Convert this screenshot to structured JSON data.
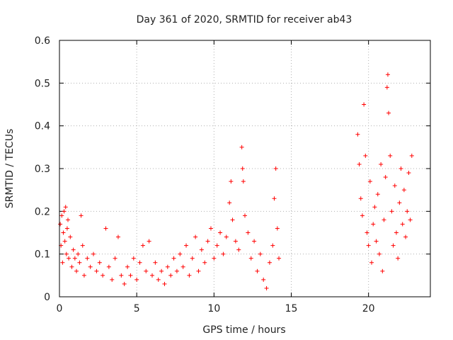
{
  "chart_data": {
    "type": "scatter",
    "title": "Day 361 of 2020, SRMTID for receiver ab43",
    "xlabel": "GPS time / hours",
    "ylabel": "SRMTID / TECUs",
    "xlim": [
      0,
      24
    ],
    "ylim": [
      0,
      0.6
    ],
    "xticks": [
      0,
      5,
      10,
      15,
      20
    ],
    "xtick_labels": [
      "0",
      "5",
      "10",
      "15",
      "20"
    ],
    "yticks": [
      0,
      0.1,
      0.2,
      0.3,
      0.4,
      0.5,
      0.6
    ],
    "ytick_labels": [
      "0",
      "0.1",
      "0.2",
      "0.3",
      "0.4",
      "0.5",
      "0.6"
    ],
    "grid": true,
    "marker": "+",
    "color": "#ff0000",
    "series": [
      {
        "name": "SRMTID",
        "points": [
          [
            0.05,
            0.17
          ],
          [
            0.1,
            0.12
          ],
          [
            0.15,
            0.19
          ],
          [
            0.2,
            0.08
          ],
          [
            0.25,
            0.15
          ],
          [
            0.3,
            0.2
          ],
          [
            0.35,
            0.13
          ],
          [
            0.4,
            0.21
          ],
          [
            0.45,
            0.1
          ],
          [
            0.5,
            0.16
          ],
          [
            0.55,
            0.18
          ],
          [
            0.6,
            0.09
          ],
          [
            0.7,
            0.14
          ],
          [
            0.8,
            0.07
          ],
          [
            0.9,
            0.11
          ],
          [
            1.0,
            0.09
          ],
          [
            1.1,
            0.06
          ],
          [
            1.2,
            0.1
          ],
          [
            1.3,
            0.08
          ],
          [
            1.4,
            0.19
          ],
          [
            1.5,
            0.12
          ],
          [
            1.6,
            0.05
          ],
          [
            1.8,
            0.09
          ],
          [
            2.0,
            0.07
          ],
          [
            2.2,
            0.1
          ],
          [
            2.4,
            0.06
          ],
          [
            2.6,
            0.08
          ],
          [
            2.8,
            0.05
          ],
          [
            3.0,
            0.16
          ],
          [
            3.2,
            0.07
          ],
          [
            3.4,
            0.04
          ],
          [
            3.6,
            0.09
          ],
          [
            3.8,
            0.14
          ],
          [
            4.0,
            0.05
          ],
          [
            4.2,
            0.03
          ],
          [
            4.4,
            0.07
          ],
          [
            4.6,
            0.05
          ],
          [
            4.8,
            0.09
          ],
          [
            5.0,
            0.04
          ],
          [
            5.2,
            0.08
          ],
          [
            5.4,
            0.12
          ],
          [
            5.6,
            0.06
          ],
          [
            5.8,
            0.13
          ],
          [
            6.0,
            0.05
          ],
          [
            6.2,
            0.08
          ],
          [
            6.4,
            0.04
          ],
          [
            6.6,
            0.06
          ],
          [
            6.8,
            0.03
          ],
          [
            7.0,
            0.07
          ],
          [
            7.2,
            0.05
          ],
          [
            7.4,
            0.09
          ],
          [
            7.6,
            0.06
          ],
          [
            7.8,
            0.1
          ],
          [
            8.0,
            0.07
          ],
          [
            8.2,
            0.12
          ],
          [
            8.4,
            0.05
          ],
          [
            8.6,
            0.09
          ],
          [
            8.8,
            0.14
          ],
          [
            9.0,
            0.06
          ],
          [
            9.2,
            0.11
          ],
          [
            9.4,
            0.08
          ],
          [
            9.6,
            0.13
          ],
          [
            9.8,
            0.16
          ],
          [
            10.0,
            0.09
          ],
          [
            10.2,
            0.12
          ],
          [
            10.4,
            0.15
          ],
          [
            10.6,
            0.1
          ],
          [
            10.8,
            0.14
          ],
          [
            11.0,
            0.22
          ],
          [
            11.1,
            0.27
          ],
          [
            11.2,
            0.18
          ],
          [
            11.4,
            0.13
          ],
          [
            11.6,
            0.11
          ],
          [
            11.8,
            0.35
          ],
          [
            11.85,
            0.3
          ],
          [
            11.9,
            0.27
          ],
          [
            12.0,
            0.19
          ],
          [
            12.2,
            0.15
          ],
          [
            12.4,
            0.09
          ],
          [
            12.6,
            0.13
          ],
          [
            12.8,
            0.06
          ],
          [
            13.0,
            0.1
          ],
          [
            13.2,
            0.04
          ],
          [
            13.4,
            0.02
          ],
          [
            13.6,
            0.08
          ],
          [
            13.8,
            0.12
          ],
          [
            13.9,
            0.23
          ],
          [
            14.0,
            0.3
          ],
          [
            14.1,
            0.16
          ],
          [
            14.2,
            0.09
          ],
          [
            19.3,
            0.38
          ],
          [
            19.4,
            0.31
          ],
          [
            19.5,
            0.23
          ],
          [
            19.6,
            0.19
          ],
          [
            19.7,
            0.45
          ],
          [
            19.8,
            0.33
          ],
          [
            19.9,
            0.15
          ],
          [
            20.0,
            0.12
          ],
          [
            20.1,
            0.27
          ],
          [
            20.2,
            0.08
          ],
          [
            20.3,
            0.17
          ],
          [
            20.4,
            0.21
          ],
          [
            20.5,
            0.13
          ],
          [
            20.6,
            0.24
          ],
          [
            20.7,
            0.1
          ],
          [
            20.8,
            0.31
          ],
          [
            20.9,
            0.06
          ],
          [
            21.0,
            0.18
          ],
          [
            21.1,
            0.28
          ],
          [
            21.2,
            0.49
          ],
          [
            21.25,
            0.52
          ],
          [
            21.3,
            0.43
          ],
          [
            21.4,
            0.33
          ],
          [
            21.5,
            0.2
          ],
          [
            21.6,
            0.12
          ],
          [
            21.7,
            0.26
          ],
          [
            21.8,
            0.15
          ],
          [
            21.9,
            0.09
          ],
          [
            22.0,
            0.22
          ],
          [
            22.1,
            0.3
          ],
          [
            22.2,
            0.17
          ],
          [
            22.3,
            0.25
          ],
          [
            22.4,
            0.14
          ],
          [
            22.5,
            0.2
          ],
          [
            22.6,
            0.29
          ],
          [
            22.7,
            0.18
          ],
          [
            22.8,
            0.33
          ]
        ]
      }
    ]
  }
}
